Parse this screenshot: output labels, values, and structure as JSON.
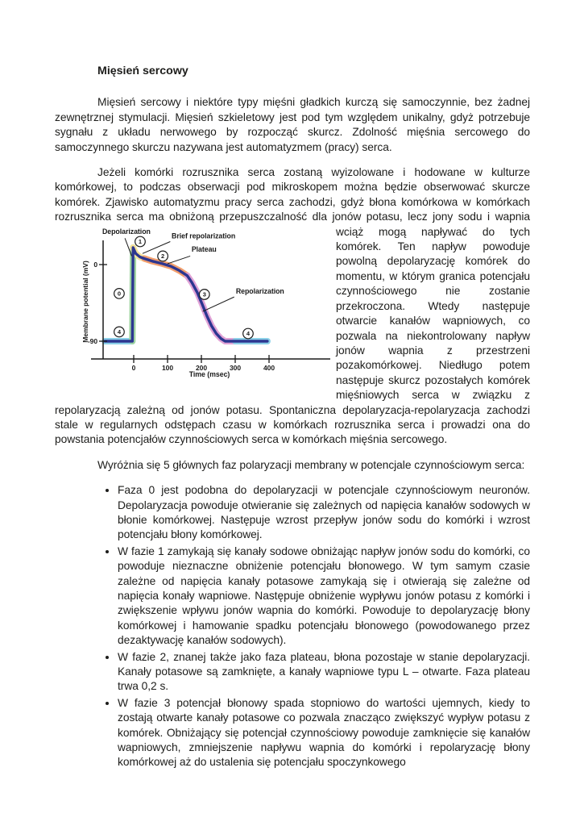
{
  "document": {
    "heading": "Mięsień sercowy",
    "p1": "Mięsień sercowy i niektóre typy mięśni gładkich kurczą się samoczynnie, bez żadnej zewnętrznej stymulacji. Mięsień szkieletowy jest pod tym względem unikalny, gdyż potrzebuje sygnału z układu nerwowego by rozpocząć skurcz. Zdolność mięśnia sercowego do samoczynnego skurczu nazywana jest automatyzmem (pracy) serca.",
    "p2_lead": "Jeżeli komórki rozrusznika serca zostaną wyizolowane i hodowane w kulturze komórkowej, to podczas obserwacji pod mikroskopem można będzie obserwować skurcze komórek. Zjawisko automatyzmu pracy serca zachodzi, gdyż błona komórkowa w komórkach rozrusznika serca ma obniżoną przepuszczalność dla jonów potasu, lecz jony sodu i wapnia wciąż mogą napływać do tych",
    "p2_wrap": "komórek. Ten napływ powoduje powolną depolaryzację komórek do momentu, w którym granica potencjału czynnościowego nie zostanie przekroczona. Wtedy następuje otwarcie kanałów wapniowych, co pozwala na niekontrolowany napływ jonów wapnia z przestrzeni pozakomórkowej. Niedługo potem następuje skurcz pozostałych komórek mięśniowych serca w związku z repolaryzacją zależną od jonów potasu. Spontaniczna depolaryzacja-repolaryzacja zachodzi stale w regularnych odstępach czasu w komórkach rozrusznika serca i prowadzi ona do powstania potencjałów czynnościowych serca w komórkach mięśnia sercowego.",
    "p3": "Wyróżnia się 5 głównych faz polaryzacji membrany w potencjale czynnościowym serca:",
    "bullets": [
      "Faza 0 jest podobna do depolaryzacji w potencjale czynnościowym neuronów. Depolaryzacja powoduje otwieranie się zależnych od napięcia kanałów sodowych w błonie komórkowej. Następuje wzrost przepływ jonów sodu do komórki i wzrost potencjału błony komórkowej.",
      "W fazie 1 zamykają się kanały sodowe obniżając napływ jonów sodu do komórki, co powoduje nieznaczne obniżenie potencjału błonowego. W tym samym czasie zależne od napięcia kanały potasowe zamykają się i otwierają się zależne od napięcia konały wapniowe. Następuje obniżenie wypływu jonów potasu z komórki i zwiększenie wpływu jonów wapnia do komórki. Powoduje to depolaryzację błony komórkowej i hamowanie spadku potencjału błonowego (powodowanego przez dezaktywację kanałów sodowych).",
      "W fazie 2, znanej także jako faza plateau, błona pozostaje w stanie depolaryzacji. Kanały potasowe są zamknięte, a kanały wapniowe typu L – otwarte. Faza plateau trwa 0,2 s.",
      "W fazie 3 potencjał błonowy spada stopniowo do wartości ujemnych, kiedy to zostają otwarte kanały potasowe co pozwala znacząco zwiększyć wypływ potasu z komórek. Obniżający się potencjał czynnościowy powoduje zamknięcie się kanałów wapniowych, zmniejszenie napływu wapnia do komórki i repolaryzację błony komórkowej aż do ustalenia się potencjału spoczynkowego"
    ]
  },
  "chart_data": {
    "type": "line",
    "title": "",
    "xlabel": "Time (msec)",
    "ylabel": "Membrane potential (mV)",
    "x_ticks": [
      0,
      100,
      200,
      300,
      400
    ],
    "y_ticks": [
      0,
      -90
    ],
    "xlim": [
      -95,
      580
    ],
    "ylim": [
      -110,
      45
    ],
    "resting_potential_mV": -90,
    "peak_potential_mV": 20,
    "plateau_duration_s": 0.2,
    "line_color": "#2c3690",
    "axis_color": "#1a1a1a",
    "phase_segments": [
      {
        "phase": "4",
        "name": "resting",
        "color": "#8bd0e8",
        "points": [
          [
            -85,
            -90
          ],
          [
            -4,
            -90
          ]
        ]
      },
      {
        "phase": "0",
        "name": "depolarization",
        "color": "#9fd4a1",
        "points": [
          [
            -4,
            -90
          ],
          [
            -2,
            20
          ]
        ]
      },
      {
        "phase": "1",
        "name": "brief repolarization",
        "color": "#f5e29b",
        "points": [
          [
            -2,
            20
          ],
          [
            6,
            13
          ],
          [
            18,
            9
          ],
          [
            32,
            7
          ]
        ]
      },
      {
        "phase": "2",
        "name": "plateau",
        "color": "#f19e6d",
        "points": [
          [
            32,
            7
          ],
          [
            55,
            4
          ],
          [
            85,
            1
          ],
          [
            110,
            -2
          ],
          [
            135,
            -7
          ],
          [
            158,
            -13
          ]
        ]
      },
      {
        "phase": "3",
        "name": "repolarization",
        "color": "#e0a2d6",
        "points": [
          [
            158,
            -13
          ],
          [
            172,
            -21
          ],
          [
            188,
            -33
          ],
          [
            202,
            -46
          ],
          [
            216,
            -60
          ],
          [
            230,
            -72
          ],
          [
            244,
            -81
          ],
          [
            258,
            -87
          ],
          [
            270,
            -90
          ],
          [
            300,
            -90
          ]
        ]
      },
      {
        "phase": "4",
        "name": "resting",
        "color": "#8bd0e8",
        "points": [
          [
            300,
            -90
          ],
          [
            395,
            -90
          ]
        ]
      }
    ],
    "phase_markers": [
      {
        "label": "0",
        "t": -43,
        "mV": -34
      },
      {
        "label": "1",
        "t": 19,
        "mV": 27
      },
      {
        "label": "2",
        "t": 86,
        "mV": 10
      },
      {
        "label": "3",
        "t": 209,
        "mV": -35
      },
      {
        "label": "4",
        "t": -43,
        "mV": -79
      },
      {
        "label": "4",
        "t": 338,
        "mV": -81
      }
    ],
    "callouts": [
      {
        "text": "Depolarization",
        "text_at": [
          -93,
          36
        ],
        "line": [
          [
            -26,
            31
          ],
          [
            -6,
            10
          ]
        ]
      },
      {
        "text": "Brief repolarization",
        "text_at": [
          112,
          31
        ],
        "line": [
          [
            108,
            27
          ],
          [
            26,
            13
          ]
        ]
      },
      {
        "text": "Plateau",
        "text_at": [
          171,
          15
        ],
        "line": [
          [
            167,
            10
          ],
          [
            100,
            1
          ]
        ]
      },
      {
        "text": "Repolarization",
        "text_at": [
          302,
          -34
        ],
        "line": [
          [
            297,
            -38
          ],
          [
            204,
            -55
          ]
        ]
      }
    ]
  }
}
